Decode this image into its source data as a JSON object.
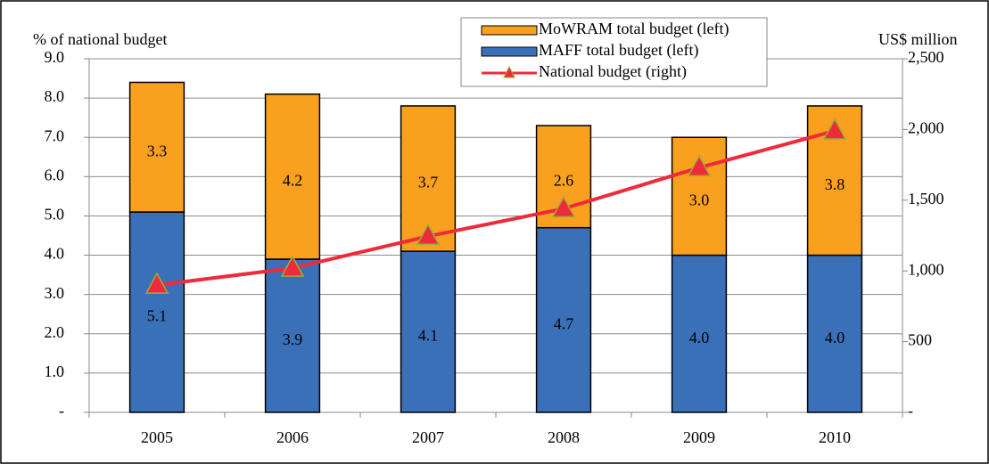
{
  "chart_data": {
    "type": "bar",
    "stacked": true,
    "ylabel": "% of national budget",
    "y2label": "US$ million",
    "categories": [
      "2005",
      "2006",
      "2007",
      "2008",
      "2009",
      "2010"
    ],
    "series": [
      {
        "name": "MAFF total budget (left)",
        "color": "#3a70b8",
        "values": [
          5.1,
          3.9,
          4.1,
          4.7,
          4.0,
          4.0
        ],
        "value_labels": [
          "5.1",
          "3.9",
          "4.1",
          "4.7",
          "4.0",
          "4.0"
        ]
      },
      {
        "name": "MoWRAM total budget (left)",
        "color": "#f9a11e",
        "values": [
          3.3,
          4.2,
          3.7,
          2.6,
          3.0,
          3.8
        ],
        "value_labels": [
          "3.3",
          "4.2",
          "3.7",
          "2.6",
          "3.0",
          "3.8"
        ]
      },
      {
        "name": "National budget (right)",
        "type": "line",
        "axis": "y2",
        "color": "#ee2b3b",
        "marker_edge": "#9bab3a",
        "values": [
          900,
          1020,
          1245,
          1440,
          1730,
          1990
        ]
      }
    ],
    "legend_order": [
      1,
      0,
      2
    ],
    "ylim": [
      0,
      9
    ],
    "yticks": [
      {
        "value": 0,
        "label": "-"
      },
      {
        "value": 1,
        "label": "1.0"
      },
      {
        "value": 2,
        "label": "2.0"
      },
      {
        "value": 3,
        "label": "3.0"
      },
      {
        "value": 4,
        "label": "4.0"
      },
      {
        "value": 5,
        "label": "5.0"
      },
      {
        "value": 6,
        "label": "6.0"
      },
      {
        "value": 7,
        "label": "7.0"
      },
      {
        "value": 8,
        "label": "8.0"
      },
      {
        "value": 9,
        "label": "9.0"
      }
    ],
    "y2lim": [
      0,
      2500
    ],
    "y2ticks": [
      {
        "value": 0,
        "label": "-"
      },
      {
        "value": 500,
        "label": "500"
      },
      {
        "value": 1000,
        "label": "1,000"
      },
      {
        "value": 1500,
        "label": "1,500"
      },
      {
        "value": 2000,
        "label": "2,000"
      },
      {
        "value": 2500,
        "label": "2,500"
      }
    ],
    "grid": true
  }
}
